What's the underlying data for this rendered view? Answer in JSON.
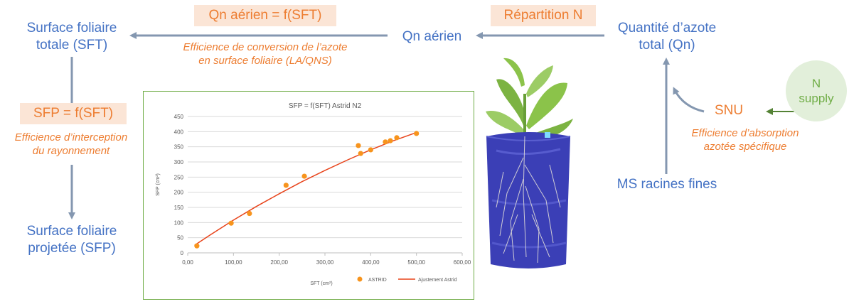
{
  "nodes": {
    "sft_line1": "Surface foliaire",
    "sft_line2": "totale (SFT)",
    "sfp_line1": "Surface foliaire",
    "sfp_line2": "projetée (SFP)",
    "qn_aerien": "Qn aérien",
    "qn_total_line1": "Quantité d’azote",
    "qn_total_line2": "total (Qn)",
    "ms_racines": "MS racines fines",
    "snu": "SNU",
    "n_supply_line1": "N",
    "n_supply_line2": "supply"
  },
  "badges": {
    "qn_aerien_f_sft": "Qn aérien = f(SFT)",
    "repartition_n": "Répartition N",
    "sfp_f_sft": "SFP = f(SFT)"
  },
  "annotations": {
    "conversion_line1": "Efficience de conversion de l’azote",
    "conversion_line2": "en surface foliaire (LA/QNS)",
    "interception_line1": "Efficience d’interception",
    "interception_line2": "du rayonnement",
    "absorption_line1": "Efficience d’absorption",
    "absorption_line2": "azotée spécifique"
  },
  "colors": {
    "node_blue": "#4472C4",
    "accent_orange": "#ED7D31",
    "badge_bg": "#FBE5D6",
    "arrow_grey": "#8497B0",
    "supply_green": "#70AD47",
    "supply_bg": "#E2EFDA",
    "chart_border": "#70AD47"
  },
  "chart_data": {
    "type": "scatter",
    "title": "SFP = f(SFT) Astrid N2",
    "xlabel": "SFT (cm²)",
    "ylabel": "SFP (cm²)",
    "xlim": [
      0,
      600
    ],
    "ylim": [
      0,
      450
    ],
    "xticks": [
      "0,00",
      "100,00",
      "200,00",
      "300,00",
      "400,00",
      "500,00",
      "600,00"
    ],
    "yticks": [
      "0",
      "50",
      "100",
      "150",
      "200",
      "250",
      "300",
      "350",
      "400",
      "450"
    ],
    "grid": "horizontal",
    "legend": "bottom-right",
    "series": [
      {
        "name": "ASTRID",
        "kind": "points",
        "color": "#F7941D",
        "x": [
          20,
          95,
          135,
          215,
          255,
          373,
          378,
          400,
          432,
          443,
          457,
          500
        ],
        "y": [
          23,
          98,
          130,
          223,
          253,
          354,
          328,
          340,
          366,
          370,
          380,
          394
        ]
      },
      {
        "name": "Ajustement Astrid",
        "kind": "line",
        "color": "#E8431A",
        "x": [
          15,
          50,
          100,
          150,
          200,
          250,
          300,
          350,
          400,
          450,
          500
        ],
        "y": [
          25,
          60,
          108,
          153,
          195,
          235,
          272,
          307,
          340,
          370,
          397
        ]
      }
    ]
  }
}
